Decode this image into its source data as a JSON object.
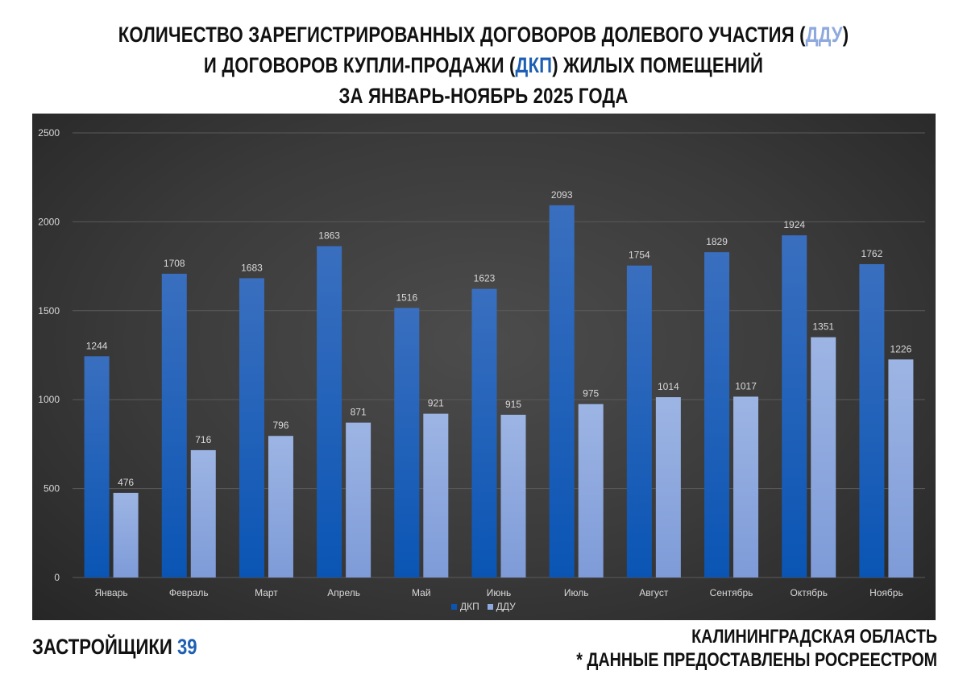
{
  "title": {
    "line1_prefix": "КОЛИЧЕСТВО ЗАРЕГИСТРИРОВАННЫХ ДОГОВОРОВ ДОЛЕВОГО УЧАСТИЯ (",
    "line1_highlight": "ДДУ",
    "line1_suffix": ")",
    "line2_prefix": "И ДОГОВОРОВ КУПЛИ-ПРОДАЖИ (",
    "line2_highlight": "ДКП",
    "line2_suffix": ") ЖИЛЫХ ПОМЕЩЕНИЙ",
    "line3": "ЗА ЯНВАРЬ-НОЯБРЬ 2025 ГОДА"
  },
  "colors": {
    "dkp": "#1f5fb3",
    "ddu": "#8ea9de",
    "background": "#3a3a3a"
  },
  "chart_data": {
    "type": "bar",
    "categories": [
      "Январь",
      "Февраль",
      "Март",
      "Апрель",
      "Май",
      "Июнь",
      "Июль",
      "Август",
      "Сентябрь",
      "Октябрь",
      "Ноябрь"
    ],
    "series": [
      {
        "name": "ДКП",
        "color": "#1f5fb3",
        "values": [
          1244,
          1708,
          1683,
          1863,
          1516,
          1623,
          2093,
          1754,
          1829,
          1924,
          1762
        ]
      },
      {
        "name": "ДДУ",
        "color": "#8ea9de",
        "values": [
          476,
          716,
          796,
          871,
          921,
          915,
          975,
          1014,
          1017,
          1351,
          1226
        ]
      }
    ],
    "ylim": [
      0,
      2500
    ],
    "yticks": [
      0,
      500,
      1000,
      1500,
      2000,
      2500
    ],
    "grid": true,
    "legend_position": "bottom",
    "data_labels": true
  },
  "footer": {
    "brand_text": "ЗАСТРОЙЩИКИ ",
    "brand_number": "39",
    "region": "КАЛИНИНГРАДСКАЯ ОБЛАСТЬ",
    "source": "* ДАННЫЕ ПРЕДОСТАВЛЕНЫ РОСРЕЕСТРОМ"
  }
}
